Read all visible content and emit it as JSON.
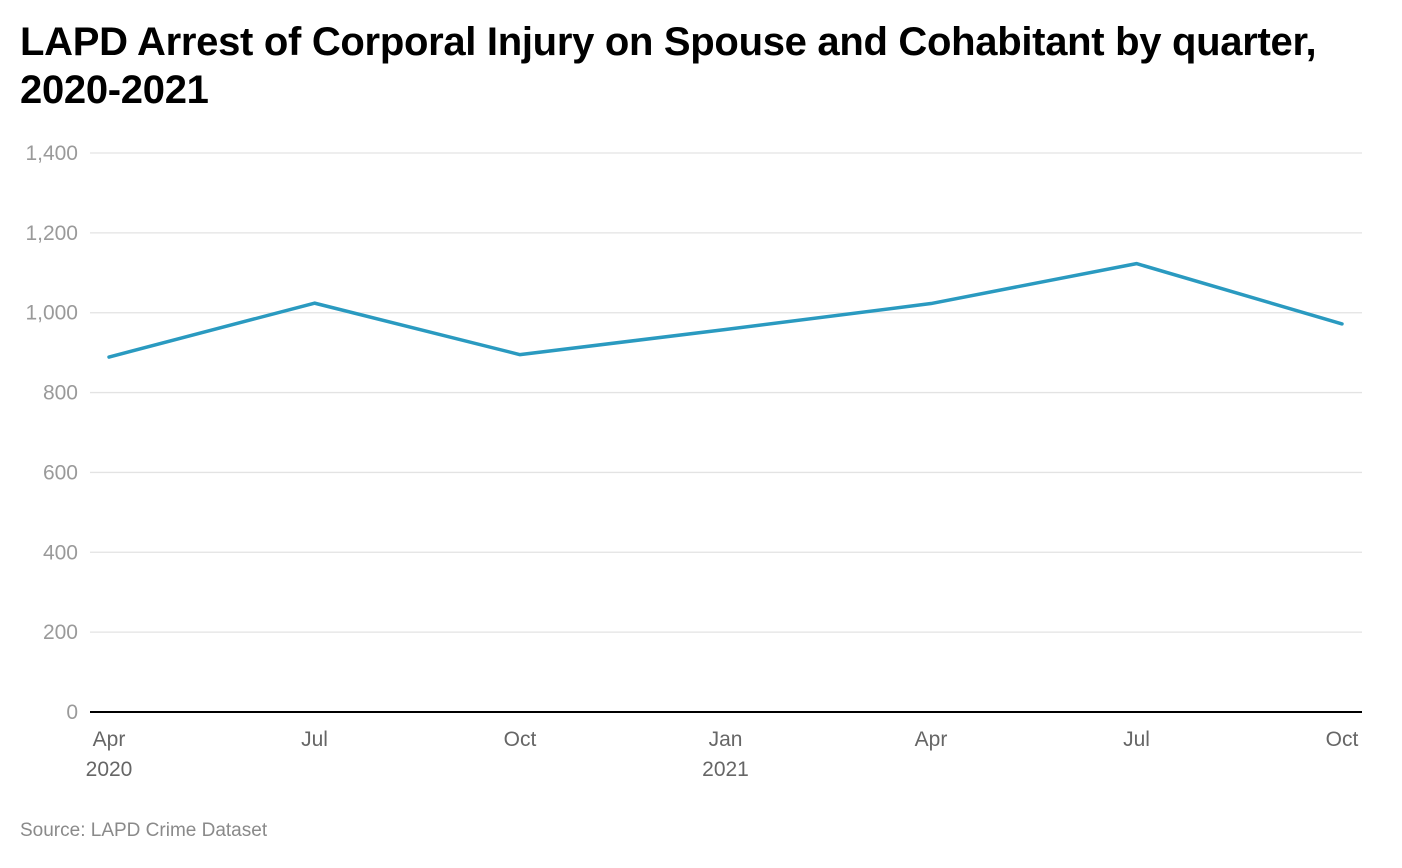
{
  "chart_data": {
    "type": "line",
    "title": "LAPD Arrest of Corporal Injury on Spouse and Cohabitant by quarter, 2020-2021",
    "xlabel": "",
    "ylabel": "",
    "ylim": [
      0,
      1400
    ],
    "y_ticks": [
      0,
      200,
      400,
      600,
      800,
      1000,
      1200,
      1400
    ],
    "y_tick_labels": [
      "0",
      "200",
      "400",
      "600",
      "800",
      "1,000",
      "1,200",
      "1,400"
    ],
    "x": [
      "2020-04",
      "2020-07",
      "2020-10",
      "2021-01",
      "2021-04",
      "2021-07",
      "2021-10"
    ],
    "x_tick_labels": [
      {
        "label": "Apr",
        "sublabel": "2020"
      },
      {
        "label": "Jul",
        "sublabel": ""
      },
      {
        "label": "Oct",
        "sublabel": ""
      },
      {
        "label": "Jan",
        "sublabel": "2021"
      },
      {
        "label": "Apr",
        "sublabel": ""
      },
      {
        "label": "Jul",
        "sublabel": ""
      },
      {
        "label": "Oct",
        "sublabel": ""
      }
    ],
    "series": [
      {
        "values": [
          889,
          1024,
          895,
          958,
          1023,
          1123,
          972
        ],
        "color": "#2a9ac0"
      }
    ],
    "grid": true,
    "legend": "none"
  },
  "source": "Source: LAPD Crime Dataset",
  "colors": {
    "line": "#2a9ac0",
    "grid": "#e3e3e3",
    "axis": "#000000",
    "tick_text": "#9a9a9a"
  }
}
